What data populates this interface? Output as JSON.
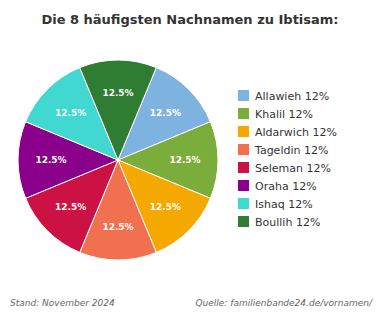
{
  "chart_data": {
    "type": "pie",
    "title": "Die 8 häufigsten Nachnamen zu Ibtisam:",
    "categories": [
      "Allawieh 12%",
      "Khalil 12%",
      "Aldarwich 12%",
      "Tageldin 12%",
      "Seleman 12%",
      "Oraha 12%",
      "Ishaq 12%",
      "Boullih 12%"
    ],
    "values": [
      12.5,
      12.5,
      12.5,
      12.5,
      12.5,
      12.5,
      12.5,
      12.5
    ],
    "value_labels": [
      "12.5%",
      "12.5%",
      "12.5%",
      "12.5%",
      "12.5%",
      "12.5%",
      "12.5%",
      "12.5%"
    ],
    "colors": [
      "#7EB3E0",
      "#7AAD3A",
      "#F5A800",
      "#F07050",
      "#CC1144",
      "#8B008B",
      "#40D8D0",
      "#2E7D32"
    ],
    "data_labels": true,
    "annotations": [
      "Stand: November 2024",
      "Quelle: familienbande24.de/vornamen/"
    ]
  }
}
